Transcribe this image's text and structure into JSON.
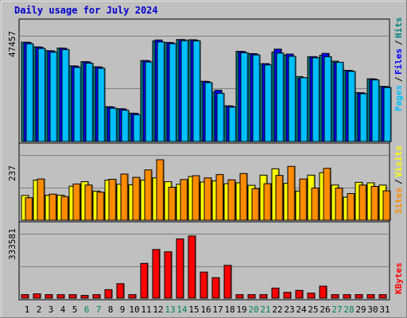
{
  "chart_data": {
    "type": "bar",
    "title": "Daily usage for July 2024",
    "categories": [
      "1",
      "2",
      "3",
      "4",
      "5",
      "6",
      "7",
      "8",
      "9",
      "10",
      "11",
      "12",
      "13",
      "14",
      "15",
      "16",
      "17",
      "18",
      "19",
      "20",
      "21",
      "22",
      "23",
      "24",
      "25",
      "26",
      "27",
      "28",
      "29",
      "30",
      "31"
    ],
    "weekend_days": [
      "6",
      "7",
      "13",
      "14",
      "20",
      "21",
      "27",
      "28"
    ],
    "panels": [
      {
        "name": "requests",
        "ymax_label": "47457",
        "ymax": 47457,
        "legend": [
          "Pages",
          "Files",
          "Hits"
        ],
        "series": [
          {
            "name": "Hits",
            "color": "#008080",
            "values": [
              44500,
              42400,
              40700,
              41900,
              33900,
              35800,
              33500,
              15600,
              14700,
              12700,
              36300,
              45100,
              44400,
              45700,
              45600,
              27000,
              22100,
              16000,
              40400,
              39400,
              34800,
              40100,
              38700,
              29100,
              38000,
              38600,
              36000,
              31900,
              21900,
              28100,
              24700
            ]
          },
          {
            "name": "Files",
            "color": "#0000ff",
            "values": [
              44400,
              42300,
              40600,
              41800,
              33800,
              35700,
              33400,
              15500,
              14600,
              12600,
              36200,
              45500,
              44300,
              45600,
              45500,
              26900,
              23000,
              15900,
              40300,
              39300,
              34900,
              41400,
              39200,
              28300,
              38000,
              39500,
              35400,
              31800,
              21800,
              28000,
              24600
            ]
          },
          {
            "name": "Pages",
            "color": "#00bfff",
            "values": [
              43800,
              41700,
              40000,
              41200,
              33200,
              35100,
              32800,
              14900,
              14000,
              12000,
              35600,
              44600,
              43800,
              45200,
              45100,
              26400,
              21600,
              15400,
              39800,
              38800,
              34300,
              39600,
              38200,
              28600,
              37500,
              38000,
              35500,
              31400,
              21400,
              27600,
              24200
            ]
          }
        ]
      },
      {
        "name": "visits",
        "ymax_label": "237",
        "ymax": 237,
        "legend": [
          "Sites",
          "Visits"
        ],
        "series": [
          {
            "name": "Visits",
            "color": "#ffff00",
            "values": [
              90,
              146,
              91,
              91,
              124,
              140,
              106,
              146,
              131,
              129,
              146,
              154,
              140,
              131,
              159,
              139,
              143,
              133,
              136,
              127,
              164,
              187,
              134,
              106,
              164,
              173,
              128,
              84,
              138,
              136,
              128
            ]
          },
          {
            "name": "Sites",
            "color": "#ff8c00",
            "values": [
              82,
              150,
              95,
              86,
              132,
              128,
              102,
              149,
              168,
              156,
              183,
              220,
              120,
              148,
              162,
              154,
              166,
              147,
              170,
              115,
              133,
              163,
              196,
              150,
              117,
              189,
              117,
              97,
              128,
              123,
              107
            ]
          }
        ]
      },
      {
        "name": "kbytes",
        "ymax_label": "333581",
        "ymax": 333581,
        "legend": [
          "KBytes"
        ],
        "series": [
          {
            "name": "KBytes",
            "color": "#ff0000",
            "values": [
              18000,
              22000,
              18000,
              18000,
              18000,
              14000,
              18000,
              44000,
              75000,
              18000,
              180000,
              252000,
              240000,
              307000,
              322000,
              135000,
              106000,
              170000,
              18000,
              18000,
              18000,
              52000,
              30000,
              40000,
              26000,
              62000,
              18000,
              18000,
              18000,
              18000,
              18000
            ]
          }
        ]
      }
    ],
    "xlabel": "",
    "grid": true
  }
}
